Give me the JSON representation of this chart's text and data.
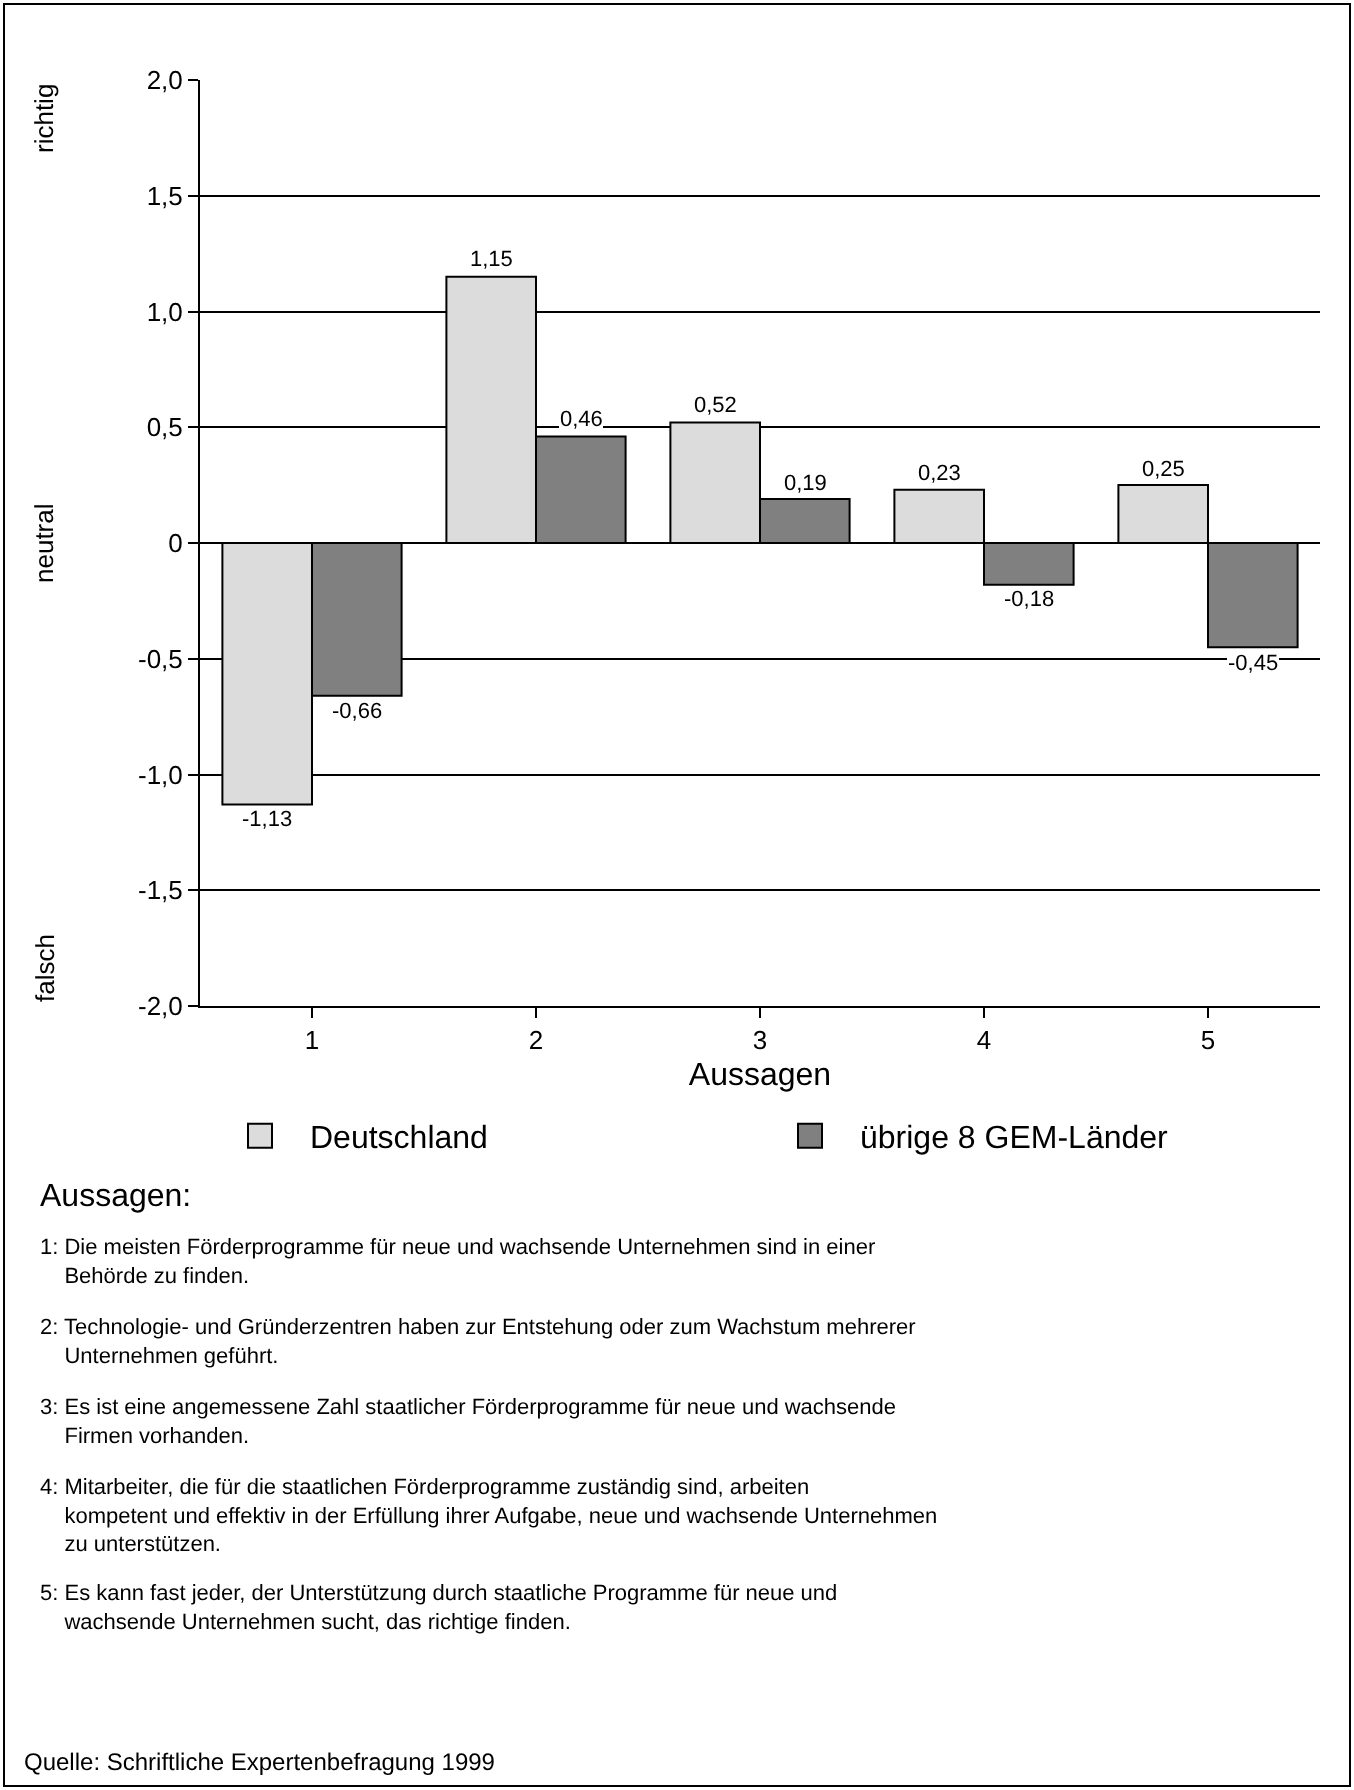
{
  "chart_data": {
    "type": "bar",
    "xlabel": "Aussagen",
    "categories": [
      "1",
      "2",
      "3",
      "4",
      "5"
    ],
    "series": [
      {
        "name": "Deutschland",
        "color": "#dcdcdc",
        "values": [
          -1.13,
          1.15,
          0.52,
          0.23,
          0.25
        ],
        "value_labels": [
          "-1,13",
          "1,15",
          "0,52",
          "0,23",
          "0,25"
        ]
      },
      {
        "name": "übrige 8 GEM-Länder",
        "color": "#808080",
        "values": [
          -0.66,
          0.46,
          0.19,
          -0.18,
          -0.45
        ],
        "value_labels": [
          "-0,66",
          "0,46",
          "0,19",
          "-0,18",
          "-0,45"
        ]
      }
    ],
    "ylim": [
      -2,
      2
    ],
    "yticks": [
      {
        "value": -2,
        "label": "-2,0"
      },
      {
        "value": -1.5,
        "label": "-1,5"
      },
      {
        "value": -1,
        "label": "-1,0"
      },
      {
        "value": -0.5,
        "label": "-0,5"
      },
      {
        "value": 0,
        "label": "0"
      },
      {
        "value": 0.5,
        "label": "0,5"
      },
      {
        "value": 1,
        "label": "1,0"
      },
      {
        "value": 1.5,
        "label": "1,5"
      },
      {
        "value": 2,
        "label": "2,0"
      }
    ],
    "grid": "y",
    "legend": "bottom",
    "annotations": [
      "richtig",
      "neutral",
      "falsch",
      "Aussagen:",
      "1: Die meisten Förderprogramme für neue und wachsende Unternehmen sind in einer Behörde zu finden.",
      "2: Technologie- und Gründerzentren haben zur Entstehung oder zum Wachstum mehrerer Unternehmen geführt.",
      "3: Es ist eine angemessene Zahl staatlicher Förderprogramme für neue und wachsende Firmen vorhanden.",
      "4: Mitarbeiter, die für die staatlichen Förderprogramme zuständig sind, arbeiten kompetent und effektiv in der Erfüllung ihrer Aufgabe, neue und wachsende Unternehmen zu unterstützen.",
      "5: Es kann fast jeder, der Unterstützung durch staatliche Programme für neue und wachsende Unternehmen sucht, das richtige finden.",
      "Quelle: Schriftliche Expertenbefragung 1999"
    ]
  }
}
